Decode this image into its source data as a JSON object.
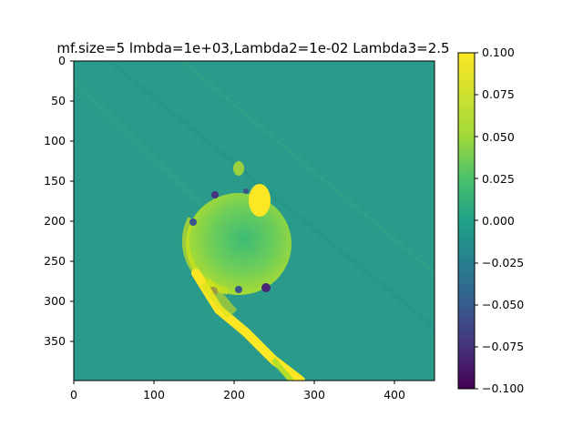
{
  "title": "mf.size=5 lmbda=1e+03,Lambda2=1e-02 Lambda3=2.5",
  "image": {
    "description_shown": "heatmap",
    "colormap": "viridis",
    "x_range": [
      0,
      450
    ],
    "y_range": [
      0,
      400
    ]
  },
  "chart_data": {
    "type": "heatmap",
    "title": "mf.size=5 lmbda=1e+03,Lambda2=1e-02 Lambda3=2.5",
    "xlabel": "",
    "ylabel": "",
    "xlim": [
      0,
      450
    ],
    "ylim": [
      400,
      0
    ],
    "x_ticks": [
      "0",
      "100",
      "200",
      "300",
      "400"
    ],
    "y_ticks": [
      "0",
      "50",
      "100",
      "150",
      "200",
      "250",
      "300",
      "350"
    ],
    "colorbar": {
      "colormap": "viridis",
      "range": [
        -0.1,
        0.1
      ],
      "ticks": [
        "0.100",
        "0.075",
        "0.050",
        "0.025",
        "0.000",
        "−0.025",
        "−0.050",
        "−0.075",
        "−0.100"
      ]
    }
  }
}
